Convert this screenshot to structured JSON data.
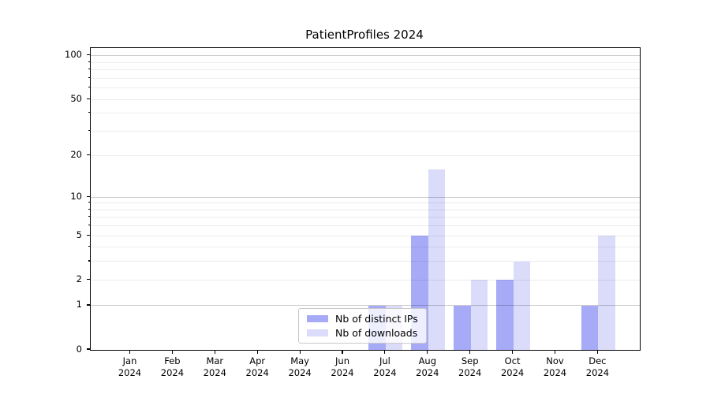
{
  "chart_data": {
    "type": "bar",
    "title": "PatientProfiles 2024",
    "categories": [
      "Jan",
      "Feb",
      "Mar",
      "Apr",
      "May",
      "Jun",
      "Jul",
      "Aug",
      "Sep",
      "Oct",
      "Nov",
      "Dec"
    ],
    "category_year": "2024",
    "series": [
      {
        "name": "Nb of distinct IPs",
        "color": "#a7aaf7",
        "values": [
          0,
          0,
          0,
          0,
          0,
          0,
          1,
          5,
          1,
          2,
          0,
          1
        ]
      },
      {
        "name": "Nb of downloads",
        "color": "#dadcf9",
        "values": [
          0,
          0,
          0,
          0,
          0,
          0,
          1,
          16,
          2,
          3,
          0,
          5
        ]
      }
    ],
    "yscale": "log1p",
    "ylim": [
      0,
      113
    ],
    "yticks": [
      0,
      1,
      2,
      5,
      10,
      20,
      50,
      100
    ],
    "ytick_labels": [
      "0",
      "1",
      "2",
      "5",
      "10",
      "20",
      "50",
      "100"
    ],
    "grid_major": [
      1,
      10,
      100
    ],
    "grid_minor": [
      2,
      3,
      4,
      5,
      6,
      7,
      8,
      9,
      20,
      30,
      40,
      50,
      60,
      70,
      80,
      90
    ],
    "grid": true,
    "legend_location": "lower center",
    "background_color": "#ffffff",
    "spine_color": "#000000"
  }
}
